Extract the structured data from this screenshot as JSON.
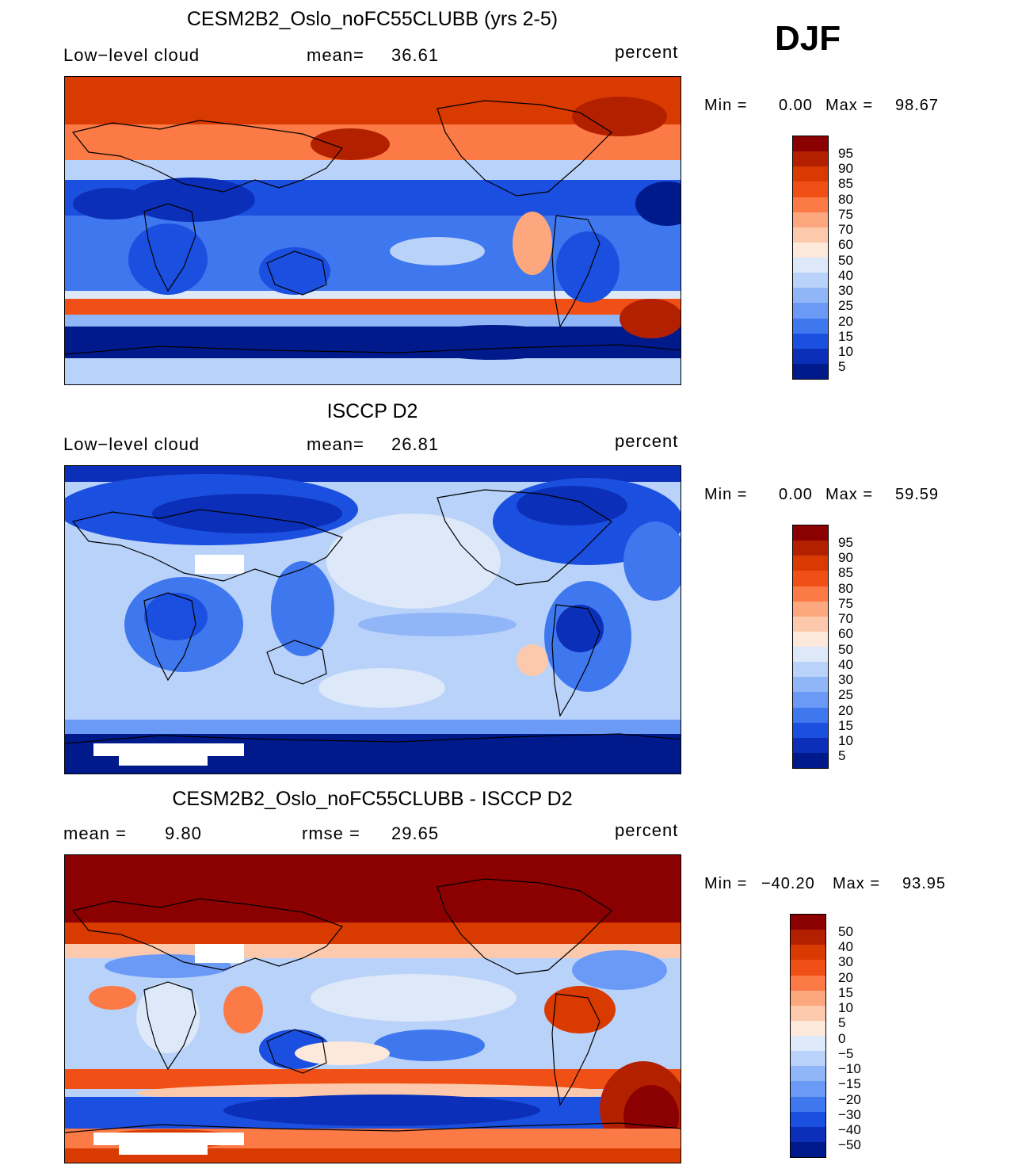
{
  "season": "DJF",
  "panels": [
    {
      "title": "CESM2B2_Oslo_noFC55CLUBB (yrs 2-5)",
      "left_label": "Low−level  cloud",
      "center_label": "mean=",
      "center_value": "36.61",
      "right_label": "percent",
      "min_label": "Min  =",
      "min_value": "0.00",
      "max_label": "Max  =",
      "max_value": "98.67",
      "colorbar_labels": [
        "95",
        "90",
        "85",
        "80",
        "75",
        "70",
        "60",
        "50",
        "40",
        "30",
        "25",
        "20",
        "15",
        "10",
        "5"
      ]
    },
    {
      "title": "ISCCP D2",
      "left_label": "Low−level  cloud",
      "center_label": "mean=",
      "center_value": "26.81",
      "right_label": "percent",
      "min_label": "Min  =",
      "min_value": "0.00",
      "max_label": "Max  =",
      "max_value": "59.59",
      "colorbar_labels": [
        "95",
        "90",
        "85",
        "80",
        "75",
        "70",
        "60",
        "50",
        "40",
        "30",
        "25",
        "20",
        "15",
        "10",
        "5"
      ]
    },
    {
      "title": "CESM2B2_Oslo_noFC55CLUBB - ISCCP D2",
      "left_label": "mean  =",
      "left_value": "9.80",
      "center_label": "rmse  =",
      "center_value": "29.65",
      "right_label": "percent",
      "min_label": "Min  =",
      "min_value": "−40.20",
      "max_label": "Max  =",
      "max_value": "93.95",
      "colorbar_labels": [
        "50",
        "40",
        "30",
        "20",
        "15",
        "10",
        "5",
        "0",
        "−5",
        "−10",
        "−15",
        "−20",
        "−30",
        "−40",
        "−50"
      ]
    }
  ],
  "colors": {
    "scale": [
      "#8b0000",
      "#b32000",
      "#d93a00",
      "#f05016",
      "#fb7a45",
      "#fca77e",
      "#fcc9ac",
      "#fde9dc",
      "#dde8f8",
      "#b9d2f9",
      "#91b6f8",
      "#6a9af5",
      "#3f77ee",
      "#1b4fe0",
      "#0b2fb8",
      "#001a8c"
    ]
  }
}
